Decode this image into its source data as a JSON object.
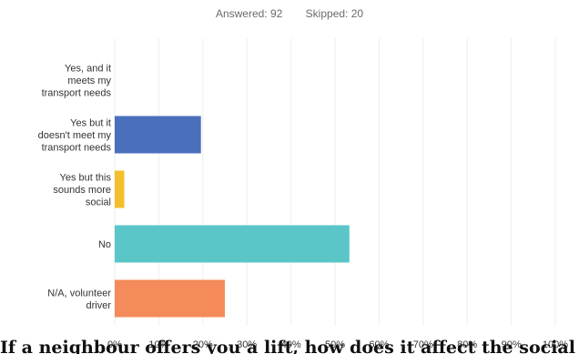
{
  "summary": {
    "answered": "Answered: 92",
    "skipped": "Skipped: 20"
  },
  "bottom_text": "If a neighbour offers you a lift, how does it affect the social dimension of your ...",
  "chart_data": {
    "type": "bar",
    "orientation": "horizontal",
    "categories": [
      [
        "Yes, and it",
        "meets my",
        "transport needs"
      ],
      [
        "Yes but it",
        "doesn't meet my",
        "transport needs"
      ],
      [
        "Yes but this",
        "sounds more",
        "social"
      ],
      [
        "No"
      ],
      [
        "N/A, volunteer",
        "driver"
      ]
    ],
    "values": [
      0,
      19.57,
      2.17,
      53.26,
      25.0
    ],
    "colors": [
      "#5b9bd5",
      "#4a6fbd",
      "#f4bf2a",
      "#5bc6c8",
      "#f58a5a"
    ],
    "xlim": [
      0,
      100
    ],
    "xticks": [
      "0%",
      "10%",
      "20%",
      "30%",
      "40%",
      "50%",
      "60%",
      "70%",
      "80%",
      "90%",
      "100%"
    ],
    "grid": true,
    "title": "",
    "xlabel": "",
    "ylabel": ""
  }
}
